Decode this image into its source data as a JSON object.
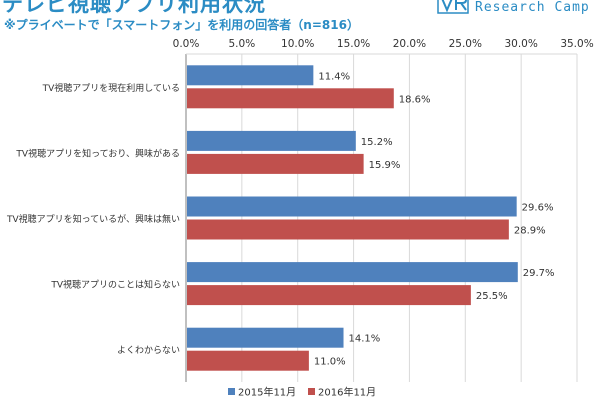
{
  "header": {
    "title": "テレビ視聴アプリ利用状況",
    "subtitle": "※プライベートで「スマートフォン」を利用の回答者（n=816）"
  },
  "brand": {
    "text": "Research Camp",
    "mark_label": "VR",
    "color": "#2b8cc4"
  },
  "chart_data": {
    "type": "bar",
    "orientation": "horizontal",
    "categories": [
      "TV視聴アプリを現在利用している",
      "TV視聴アプリを知っており、興味がある",
      "TV視聴アプリを知っているが、興味は無い",
      "TV視聴アプリのことは知らない",
      "よくわからない"
    ],
    "series": [
      {
        "name": "2015年11月",
        "values": [
          11.4,
          15.2,
          29.6,
          29.7,
          14.1
        ],
        "color": "#4f81bd"
      },
      {
        "name": "2016年11月",
        "values": [
          18.6,
          15.9,
          28.9,
          25.5,
          11.0
        ],
        "color": "#c0504d"
      }
    ],
    "xlim": [
      0,
      35
    ],
    "xticks": [
      "0.0%",
      "5.0%",
      "10.0%",
      "15.0%",
      "20.0%",
      "25.0%",
      "30.0%",
      "35.0%"
    ],
    "value_suffix": "%",
    "axis_position": "top",
    "grid": true,
    "legend_position": "bottom"
  }
}
